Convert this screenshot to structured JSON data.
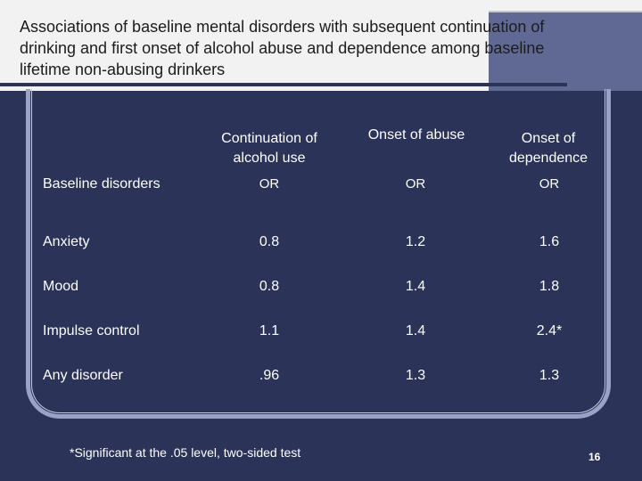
{
  "slide": {
    "title": "Associations of baseline mental disorders with subsequent continuation of drinking and first onset of alcohol abuse and dependence among baseline lifetime non-abusing drinkers",
    "footnote": "*Significant at the .05 level, two-sided test",
    "page_number": "16"
  },
  "table": {
    "columns": [
      {
        "header": "Continuation of alcohol use",
        "subheader": "OR"
      },
      {
        "header": "Onset of abuse",
        "subheader": "OR"
      },
      {
        "header": "Onset of dependence",
        "subheader": "OR"
      }
    ],
    "row_header": "Baseline disorders",
    "rows": [
      {
        "label": "Anxiety",
        "values": [
          "0.8",
          "1.2",
          "1.6"
        ]
      },
      {
        "label": "Mood",
        "values": [
          "0.8",
          "1.4",
          "1.8"
        ]
      },
      {
        "label": "Impulse control",
        "values": [
          "1.1",
          "1.4",
          "2.4*"
        ]
      },
      {
        "label": "Any disorder",
        "values": [
          ".96",
          "1.3",
          "1.3"
        ]
      }
    ]
  },
  "colors": {
    "background": "#2b3358",
    "frame": "#9aa3c7",
    "title_band": "#f2f2f2"
  }
}
